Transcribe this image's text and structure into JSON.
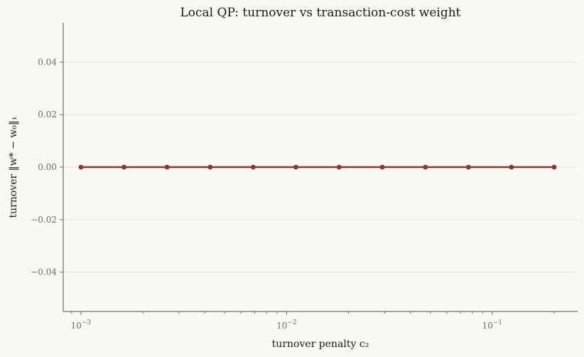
{
  "chart_data": {
    "type": "line",
    "title": "Local QP: turnover vs transaction-cost weight",
    "xlabel": "turnover penalty c₂",
    "ylabel": "turnover ‖w* − w₀‖₁",
    "xscale": "log",
    "xlim": [
      0.00082,
      0.26
    ],
    "ylim": [
      -0.055,
      0.055
    ],
    "grid": "y-only",
    "x_ticks": [
      {
        "value": 0.001,
        "base": "10",
        "exp": "−3"
      },
      {
        "value": 0.01,
        "base": "10",
        "exp": "−2"
      },
      {
        "value": 0.1,
        "base": "10",
        "exp": "−1"
      }
    ],
    "y_ticks": [
      {
        "value": 0.04,
        "label": "0.04"
      },
      {
        "value": 0.02,
        "label": "0.02"
      },
      {
        "value": 0.0,
        "label": "0.00"
      },
      {
        "value": -0.02,
        "label": "−0.02"
      },
      {
        "value": -0.04,
        "label": "−0.04"
      }
    ],
    "series": [
      {
        "color": "#8b3530",
        "x": [
          0.001,
          0.00162,
          0.00262,
          0.00425,
          0.00688,
          0.0111,
          0.018,
          0.0292,
          0.0473,
          0.0766,
          0.124,
          0.2
        ],
        "y": [
          0,
          0,
          0,
          0,
          0,
          0,
          0,
          0,
          0,
          0,
          0,
          0
        ]
      }
    ]
  }
}
